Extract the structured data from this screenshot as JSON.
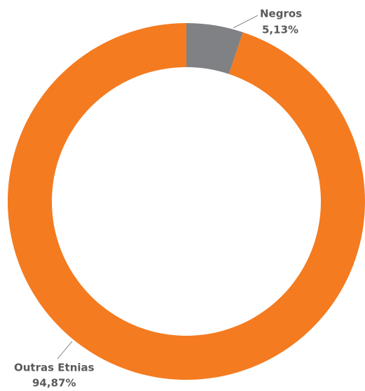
{
  "chart_data": {
    "type": "donut",
    "categories": [
      "Negros",
      "Outras Etnias"
    ],
    "values": [
      5.13,
      94.87
    ],
    "value_labels": [
      "5,13%",
      "94,87%"
    ],
    "colors": [
      "#808184",
      "#f47b20"
    ]
  }
}
